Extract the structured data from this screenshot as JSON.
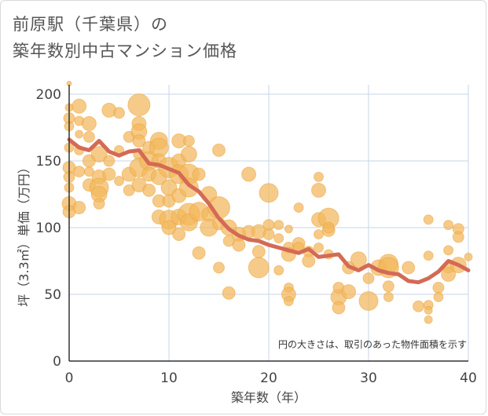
{
  "title": {
    "line1": "前原駅（千葉県）の",
    "line2": "築年数別中古マンション価格"
  },
  "note": "円の大きさは、取引のあった物件面積を示す",
  "colors": {
    "bubble": "#f3b75c",
    "bubble_stroke": "#e9a23a",
    "line": "#d46a55",
    "grid": "#c9d6e6",
    "axis": "#333333"
  },
  "chart_data": {
    "type": "scatter",
    "xlabel": "築年数（年）",
    "ylabel": "坪（3.3㎡）単価（万円）",
    "xlim": [
      0,
      40
    ],
    "ylim": [
      0,
      200
    ],
    "xticks": [
      0,
      10,
      20,
      30,
      40
    ],
    "yticks": [
      0,
      50,
      100,
      150,
      200
    ],
    "grid": true,
    "bubbles": [
      [
        0,
        208,
        3
      ],
      [
        0,
        190,
        5
      ],
      [
        0,
        182,
        7
      ],
      [
        0,
        176,
        6
      ],
      [
        0,
        160,
        6
      ],
      [
        0,
        145,
        8
      ],
      [
        0,
        138,
        7
      ],
      [
        0,
        130,
        6
      ],
      [
        0,
        118,
        9
      ],
      [
        0,
        112,
        8
      ],
      [
        1,
        191,
        9
      ],
      [
        1,
        180,
        6
      ],
      [
        1,
        170,
        5
      ],
      [
        1,
        158,
        6
      ],
      [
        1,
        142,
        7
      ],
      [
        1,
        115,
        8
      ],
      [
        2,
        178,
        9
      ],
      [
        2,
        168,
        7
      ],
      [
        2,
        150,
        8
      ],
      [
        2,
        142,
        6
      ],
      [
        2,
        132,
        8
      ],
      [
        3,
        155,
        10
      ],
      [
        3,
        138,
        9
      ],
      [
        3,
        130,
        12
      ],
      [
        3,
        125,
        10
      ],
      [
        3,
        118,
        7
      ],
      [
        4,
        188,
        9
      ],
      [
        4,
        150,
        7
      ],
      [
        4,
        140,
        8
      ],
      [
        5,
        186,
        7
      ],
      [
        5,
        158,
        6
      ],
      [
        5,
        135,
        6
      ],
      [
        6,
        168,
        7
      ],
      [
        6,
        140,
        9
      ],
      [
        6,
        128,
        7
      ],
      [
        7,
        192,
        14
      ],
      [
        7,
        178,
        9
      ],
      [
        7,
        172,
        10
      ],
      [
        7,
        165,
        8
      ],
      [
        7,
        155,
        7
      ],
      [
        7,
        145,
        12
      ],
      [
        7,
        132,
        9
      ],
      [
        8,
        150,
        12
      ],
      [
        8,
        140,
        9
      ],
      [
        8,
        128,
        8
      ],
      [
        8,
        160,
        8
      ],
      [
        9,
        165,
        11
      ],
      [
        9,
        160,
        12
      ],
      [
        9,
        150,
        9
      ],
      [
        9,
        138,
        10
      ],
      [
        9,
        120,
        8
      ],
      [
        9,
        108,
        9
      ],
      [
        10,
        145,
        13
      ],
      [
        10,
        130,
        10
      ],
      [
        10,
        120,
        8
      ],
      [
        10,
        106,
        12
      ],
      [
        10,
        100,
        9
      ],
      [
        11,
        165,
        9
      ],
      [
        11,
        150,
        9
      ],
      [
        11,
        140,
        12
      ],
      [
        11,
        124,
        9
      ],
      [
        11,
        108,
        10
      ],
      [
        11,
        95,
        8
      ],
      [
        12,
        165,
        7
      ],
      [
        12,
        155,
        10
      ],
      [
        12,
        140,
        13
      ],
      [
        12,
        130,
        12
      ],
      [
        12,
        110,
        14
      ],
      [
        12,
        104,
        11
      ],
      [
        13,
        140,
        8
      ],
      [
        13,
        112,
        12
      ],
      [
        13,
        81,
        8
      ],
      [
        14,
        125,
        10
      ],
      [
        14,
        110,
        9
      ],
      [
        14,
        100,
        11
      ],
      [
        15,
        158,
        8
      ],
      [
        15,
        115,
        14
      ],
      [
        15,
        103,
        8
      ],
      [
        15,
        70,
        7
      ],
      [
        16,
        100,
        10
      ],
      [
        16,
        90,
        7
      ],
      [
        16,
        51,
        8
      ],
      [
        17,
        95,
        9
      ],
      [
        17,
        87,
        8
      ],
      [
        18,
        140,
        9
      ],
      [
        18,
        97,
        8
      ],
      [
        19,
        97,
        9
      ],
      [
        19,
        82,
        8
      ],
      [
        19,
        70,
        13
      ],
      [
        20,
        126,
        12
      ],
      [
        20,
        102,
        7
      ],
      [
        20,
        95,
        7
      ],
      [
        21,
        102,
        6
      ],
      [
        21,
        92,
        6
      ],
      [
        21,
        68,
        6
      ],
      [
        22,
        99,
        5
      ],
      [
        22,
        85,
        7
      ],
      [
        22,
        80,
        9
      ],
      [
        22,
        55,
        6
      ],
      [
        22,
        50,
        9
      ],
      [
        22,
        45,
        6
      ],
      [
        23,
        115,
        6
      ],
      [
        23,
        88,
        8
      ],
      [
        23,
        85,
        7
      ],
      [
        24,
        82,
        7
      ],
      [
        24,
        75,
        8
      ],
      [
        25,
        138,
        6
      ],
      [
        25,
        128,
        9
      ],
      [
        25,
        106,
        9
      ],
      [
        25,
        95,
        6
      ],
      [
        25,
        85,
        6
      ],
      [
        26,
        107,
        13
      ],
      [
        26,
        98,
        8
      ],
      [
        26,
        80,
        6
      ],
      [
        26,
        100,
        7
      ],
      [
        27,
        48,
        10
      ],
      [
        27,
        40,
        8
      ],
      [
        27,
        55,
        7
      ],
      [
        28,
        52,
        9
      ],
      [
        28,
        70,
        8
      ],
      [
        29,
        76,
        10
      ],
      [
        30,
        45,
        12
      ],
      [
        30,
        62,
        7
      ],
      [
        31,
        70,
        10
      ],
      [
        32,
        73,
        12
      ],
      [
        32,
        70,
        13
      ],
      [
        32,
        56,
        7
      ],
      [
        32,
        48,
        6
      ],
      [
        34,
        70,
        8
      ],
      [
        35,
        41,
        7
      ],
      [
        36,
        106,
        6
      ],
      [
        36,
        79,
        6
      ],
      [
        36,
        42,
        6
      ],
      [
        36,
        38,
        5
      ],
      [
        36,
        31,
        5
      ],
      [
        37,
        55,
        7
      ],
      [
        37,
        48,
        6
      ],
      [
        38,
        102,
        6
      ],
      [
        38,
        83,
        6
      ],
      [
        38,
        70,
        7
      ],
      [
        38,
        65,
        9
      ],
      [
        39,
        99,
        7
      ],
      [
        39,
        93,
        7
      ],
      [
        39,
        72,
        10
      ],
      [
        40,
        78,
        5
      ]
    ],
    "trend_line": {
      "x": [
        0,
        1,
        2,
        3,
        4,
        5,
        6,
        7,
        8,
        9,
        10,
        11,
        12,
        13,
        14,
        15,
        16,
        17,
        18,
        19,
        20,
        21,
        22,
        23,
        24,
        25,
        26,
        27,
        28,
        29,
        30,
        31,
        32,
        33,
        34,
        35,
        36,
        37,
        38,
        39,
        40
      ],
      "y": [
        166,
        160,
        158,
        165,
        157,
        154,
        157,
        158,
        148,
        147,
        144,
        141,
        132,
        127,
        118,
        107,
        99,
        94,
        91,
        90,
        87,
        85,
        83,
        81,
        84,
        78,
        79,
        80,
        71,
        68,
        72,
        68,
        66,
        65,
        60,
        59,
        62,
        67,
        75,
        72,
        68
      ]
    }
  }
}
